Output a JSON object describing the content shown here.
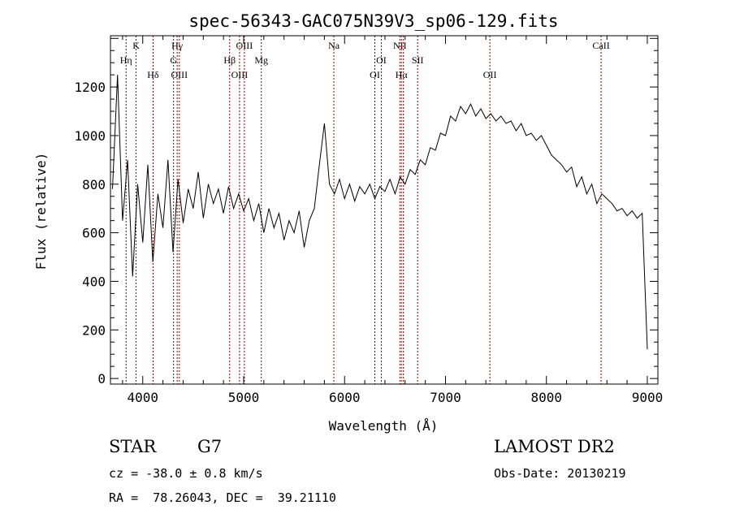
{
  "chart_data": {
    "type": "line",
    "title": "spec-56343-GAC075N39V3_sp06-129.fits",
    "xlabel": "Wavelength (Å)",
    "ylabel": "Flux (relative)",
    "xlim": [
      3680,
      9105
    ],
    "ylim": [
      -23,
      1411
    ],
    "xticks": [
      4000,
      5000,
      6000,
      7000,
      8000,
      9000
    ],
    "yticks": [
      0,
      200,
      400,
      600,
      800,
      1000,
      1200
    ],
    "grid": false,
    "series": [
      {
        "name": "spectrum",
        "x_start": 3700,
        "x_step": 50,
        "values": [
          780,
          1250,
          650,
          900,
          420,
          800,
          560,
          880,
          480,
          760,
          620,
          900,
          520,
          820,
          640,
          780,
          700,
          850,
          660,
          800,
          720,
          780,
          680,
          790,
          700,
          760,
          690,
          740,
          650,
          720,
          600,
          700,
          620,
          680,
          570,
          650,
          600,
          690,
          540,
          650,
          700,
          880,
          1050,
          800,
          760,
          820,
          740,
          800,
          730,
          790,
          760,
          800,
          740,
          790,
          770,
          820,
          760,
          830,
          800,
          860,
          840,
          900,
          880,
          950,
          940,
          1010,
          1000,
          1080,
          1060,
          1120,
          1090,
          1130,
          1080,
          1110,
          1070,
          1090,
          1060,
          1080,
          1050,
          1060,
          1020,
          1050,
          1000,
          1010,
          980,
          1000,
          960,
          920,
          900,
          880,
          850,
          870,
          790,
          830,
          760,
          800,
          720,
          760,
          740,
          720,
          690,
          700,
          670,
          690,
          660,
          680,
          120
        ]
      }
    ],
    "line_markers": [
      {
        "label": "Hη",
        "wavelength": 3835,
        "row": 1
      },
      {
        "label": "K",
        "wavelength": 3934,
        "row": 0
      },
      {
        "label": "Hδ",
        "wavelength": 4102,
        "row": 2
      },
      {
        "label": "G",
        "wavelength": 4305,
        "row": 1
      },
      {
        "label": "Hγ",
        "wavelength": 4341,
        "row": 0
      },
      {
        "label": "OIII",
        "wavelength": 4363,
        "row": 2
      },
      {
        "label": "Hβ",
        "wavelength": 4861,
        "row": 1
      },
      {
        "label": "OIII",
        "wavelength": 4959,
        "row": 2
      },
      {
        "label": "OIII",
        "wavelength": 5007,
        "row": 0
      },
      {
        "label": "Mg",
        "wavelength": 5175,
        "row": 1
      },
      {
        "label": "Na",
        "wavelength": 5894,
        "row": 0
      },
      {
        "label": "OI",
        "wavelength": 6300,
        "row": 2
      },
      {
        "label": "OI",
        "wavelength": 6364,
        "row": 1
      },
      {
        "label": "NII",
        "wavelength": 6548,
        "row": 0
      },
      {
        "label": "Hα",
        "wavelength": 6563,
        "row": 2
      },
      {
        "label": "NII",
        "wavelength": 6583,
        "row": -1
      },
      {
        "label": "SII",
        "wavelength": 6724,
        "row": 1
      },
      {
        "label": "OII",
        "wavelength": 7440,
        "row": 2
      },
      {
        "label": "CaII",
        "wavelength": 8542,
        "row": 0
      }
    ],
    "colors": {
      "spectrum": "#000000",
      "markers": "#8b0000"
    }
  },
  "info": {
    "class": "STAR",
    "subclass": "G7",
    "cz": "cz = -38.0 ± 0.8 km/s",
    "radec": "RA =  78.26043, DEC =  39.21110",
    "survey": "LAMOST DR2",
    "obs_date": "Obs-Date: 20130219"
  }
}
